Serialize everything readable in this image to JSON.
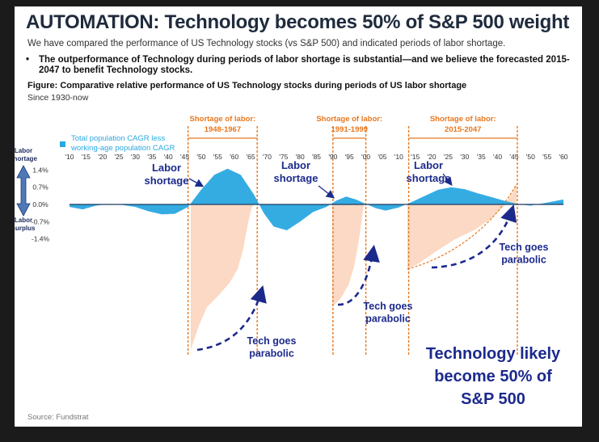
{
  "header": {
    "title": "AUTOMATION: Technology becomes 50% of S&P 500 weight",
    "subtitle": "We have compared the performance of US Technology stocks (vs S&P 500) and indicated periods of labor shortage.",
    "bullet_marker": "•",
    "bullet": "The outperformance of Technology during periods of labor shortage is substantial—and we believe the forecasted 2015-2047 to benefit Technology stocks.",
    "figure_title": "Figure: Comparative relative performance of US Technology stocks during periods of US labor shortage",
    "figure_subtitle": "Since 1930-now",
    "source": "Source: Fundstrat"
  },
  "chart_data": {
    "type": "area",
    "legend": "Total population CAGR less working-age population CAGR",
    "legend_lines": [
      "Total population CAGR less",
      "working-age population CAGR"
    ],
    "x_tick_labels": [
      "'10",
      "'15",
      "'20",
      "'25",
      "'30",
      "'35",
      "'40",
      "'45",
      "'50",
      "'55",
      "'60",
      "'65",
      "'70",
      "'75",
      "'80",
      "'85",
      "'90",
      "'95",
      "'00",
      "'05",
      "'10",
      "'15",
      "'20",
      "'25",
      "'30",
      "'35",
      "'40",
      "'45",
      "'50",
      "'55",
      "'60"
    ],
    "y_tick_labels": [
      "1.4%",
      "0.7%",
      "0.0%",
      "-0.7%",
      "-1.4%"
    ],
    "ylim": [
      -1.4,
      1.4
    ],
    "xlim": [
      1910,
      2060
    ],
    "y_axis_top_label": [
      "Labor",
      "shortage"
    ],
    "y_axis_bottom_label": [
      "Labor",
      "surplus"
    ],
    "series": [
      {
        "name": "Total population CAGR less working-age population CAGR",
        "color": "#29a8e0",
        "x": [
          1910,
          1914,
          1918,
          1922,
          1926,
          1930,
          1934,
          1938,
          1942,
          1946,
          1950,
          1954,
          1958,
          1962,
          1966,
          1969,
          1972,
          1976,
          1980,
          1984,
          1988,
          1991,
          1994,
          1997,
          2000,
          2003,
          2006,
          2010,
          2014,
          2018,
          2022,
          2026,
          2030,
          2034,
          2038,
          2042,
          2046,
          2050,
          2054,
          2058,
          2060
        ],
        "y": [
          -0.1,
          -0.2,
          -0.05,
          0.02,
          -0.02,
          -0.1,
          -0.28,
          -0.4,
          -0.38,
          -0.1,
          0.6,
          1.2,
          1.45,
          1.2,
          0.4,
          -0.35,
          -0.9,
          -1.05,
          -0.7,
          -0.3,
          -0.1,
          0.15,
          0.32,
          0.2,
          0.02,
          -0.15,
          -0.25,
          -0.12,
          0.1,
          0.35,
          0.6,
          0.7,
          0.62,
          0.45,
          0.3,
          0.15,
          0.02,
          -0.05,
          0.05,
          0.15,
          0.2
        ]
      }
    ],
    "shortage_periods": [
      {
        "label_line1": "Shortage of labor:",
        "label_line2": "1948-1967",
        "start": 1946,
        "end": 1967
      },
      {
        "label_line1": "Shortage of labor:",
        "label_line2": "1991-1999",
        "start": 1990,
        "end": 2000
      },
      {
        "label_line1": "Shortage of labor:",
        "label_line2": "2015-2047",
        "start": 2013,
        "end": 2046
      }
    ],
    "annotations": {
      "labor_shortage_1": [
        "Labor",
        "shortage"
      ],
      "labor_shortage_2": [
        "Labor",
        "shortage"
      ],
      "labor_shortage_3": [
        "Labor",
        "shortage"
      ],
      "tech_parabolic_1": [
        "Tech goes",
        "parabolic"
      ],
      "tech_parabolic_2": [
        "Tech goes",
        "parabolic"
      ],
      "tech_parabolic_3": [
        "Tech goes",
        "parabolic"
      ],
      "callout": [
        "Technology likely",
        "become 50% of",
        "S&P 500"
      ]
    },
    "colors": {
      "area": "#29a8e0",
      "shortage_fill": "#fbd9c4",
      "shortage_border": "#e8771e",
      "shortage_label": "#e8771e",
      "arrow": "#1c2a8c",
      "annotation_text": "#1c2a8c"
    }
  }
}
